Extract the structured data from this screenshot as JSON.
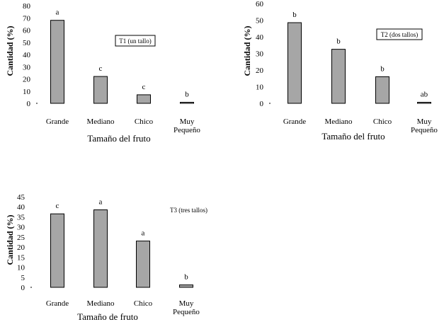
{
  "chart_data": [
    {
      "type": "bar",
      "categories": [
        "Grande",
        "Mediano",
        "Chico",
        "Muy Pequeño"
      ],
      "values": [
        68,
        22,
        7,
        0.8
      ],
      "significance": [
        "a",
        "c",
        "c",
        "b"
      ],
      "annotation": "T1 (un tallo)",
      "xlabel": "Tamaño del fruto",
      "ylabel": "Cantidad (%)",
      "ylim": [
        0,
        80
      ],
      "yticks": [
        0,
        10,
        20,
        30,
        40,
        50,
        60,
        70,
        80
      ],
      "grid": false,
      "colors": {
        "bar": "#a6a6a6",
        "edge": "#000000"
      }
    },
    {
      "type": "bar",
      "categories": [
        "Grande",
        "Mediano",
        "Chico",
        "Muy Pequeño"
      ],
      "values": [
        48.5,
        32.5,
        16,
        0.5
      ],
      "significance": [
        "b",
        "b",
        "b",
        "ab"
      ],
      "annotation": "T2 (dos tallos)",
      "xlabel": "Tamaño del fruto",
      "ylabel": "Cantidad (%)",
      "ylim": [
        0,
        60
      ],
      "yticks": [
        0,
        10,
        20,
        30,
        40,
        50,
        60
      ],
      "grid": false,
      "colors": {
        "bar": "#a6a6a6",
        "edge": "#000000"
      }
    },
    {
      "type": "bar",
      "categories": [
        "Grande",
        "Mediano",
        "Chico",
        "Muy Pequeño"
      ],
      "values": [
        36.5,
        38.5,
        23,
        1.2
      ],
      "significance": [
        "c",
        "a",
        "a",
        "b"
      ],
      "annotation": "T3 (tres tallos)",
      "xlabel": "Tamaño de fruto",
      "ylabel": "Cantidad (%)",
      "ylim": [
        0,
        45
      ],
      "yticks": [
        0,
        5,
        10,
        15,
        20,
        25,
        30,
        35,
        40,
        45
      ],
      "grid": false,
      "colors": {
        "bar": "#a6a6a6",
        "edge": "#000000"
      }
    }
  ]
}
